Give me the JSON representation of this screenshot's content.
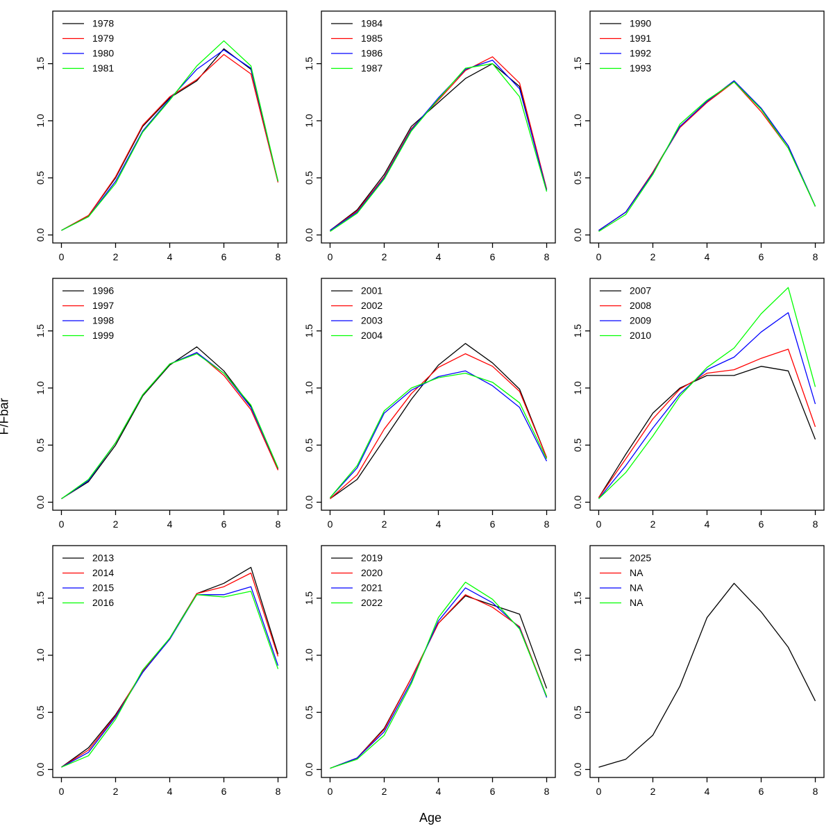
{
  "figure": {
    "xlabel": "Age",
    "ylabel": "F/Fbar",
    "background": "#ffffff",
    "axis_color": "#000000",
    "x_ticks": [
      "0",
      "2",
      "4",
      "6",
      "8"
    ],
    "y_ticks": [
      "0.0",
      "0.5",
      "1.0",
      "1.5"
    ],
    "xlim": [
      -0.32,
      8.32
    ],
    "ylim": [
      -0.07,
      1.96
    ],
    "legend_position": "top-left",
    "grid": "off",
    "layout": "3x3 small multiples"
  },
  "chart_data": [
    {
      "type": "line",
      "x": [
        0,
        1,
        2,
        3,
        4,
        5,
        6,
        7,
        8
      ],
      "xlabel": "Age",
      "ylabel": "F/Fbar",
      "legend": [
        "1978",
        "1979",
        "1980",
        "1981"
      ],
      "series": [
        {
          "name": "1978",
          "color": "#000000",
          "values": [
            0.04,
            0.17,
            0.5,
            0.95,
            1.2,
            1.35,
            1.63,
            1.45,
            0.47
          ]
        },
        {
          "name": "1979",
          "color": "#ff0000",
          "values": [
            0.04,
            0.17,
            0.51,
            0.96,
            1.21,
            1.36,
            1.58,
            1.41,
            0.46
          ]
        },
        {
          "name": "1980",
          "color": "#0000ff",
          "values": [
            0.04,
            0.16,
            0.47,
            0.91,
            1.19,
            1.45,
            1.62,
            1.46,
            0.47
          ]
        },
        {
          "name": "1981",
          "color": "#00ff00",
          "values": [
            0.04,
            0.16,
            0.45,
            0.9,
            1.18,
            1.48,
            1.7,
            1.48,
            0.47
          ]
        }
      ]
    },
    {
      "type": "line",
      "x": [
        0,
        1,
        2,
        3,
        4,
        5,
        6,
        7,
        8
      ],
      "xlabel": "Age",
      "ylabel": "F/Fbar",
      "legend": [
        "1984",
        "1985",
        "1986",
        "1987"
      ],
      "series": [
        {
          "name": "1984",
          "color": "#000000",
          "values": [
            0.04,
            0.22,
            0.53,
            0.95,
            1.16,
            1.37,
            1.5,
            1.3,
            0.4
          ]
        },
        {
          "name": "1985",
          "color": "#ff0000",
          "values": [
            0.04,
            0.21,
            0.51,
            0.93,
            1.18,
            1.44,
            1.56,
            1.33,
            0.4
          ]
        },
        {
          "name": "1986",
          "color": "#0000ff",
          "values": [
            0.04,
            0.2,
            0.5,
            0.92,
            1.2,
            1.45,
            1.53,
            1.28,
            0.39
          ]
        },
        {
          "name": "1987",
          "color": "#00ff00",
          "values": [
            0.03,
            0.19,
            0.49,
            0.91,
            1.19,
            1.46,
            1.5,
            1.21,
            0.38
          ]
        }
      ]
    },
    {
      "type": "line",
      "x": [
        0,
        1,
        2,
        3,
        4,
        5,
        6,
        7,
        8
      ],
      "xlabel": "Age",
      "ylabel": "F/Fbar",
      "legend": [
        "1990",
        "1991",
        "1992",
        "1993"
      ],
      "series": [
        {
          "name": "1990",
          "color": "#000000",
          "values": [
            0.04,
            0.2,
            0.55,
            0.95,
            1.17,
            1.35,
            1.11,
            0.78,
            0.25
          ]
        },
        {
          "name": "1991",
          "color": "#ff0000",
          "values": [
            0.04,
            0.2,
            0.55,
            0.94,
            1.16,
            1.34,
            1.08,
            0.76,
            0.25
          ]
        },
        {
          "name": "1992",
          "color": "#0000ff",
          "values": [
            0.04,
            0.2,
            0.54,
            0.95,
            1.17,
            1.35,
            1.11,
            0.78,
            0.25
          ]
        },
        {
          "name": "1993",
          "color": "#00ff00",
          "values": [
            0.03,
            0.18,
            0.53,
            0.97,
            1.18,
            1.34,
            1.1,
            0.76,
            0.25
          ]
        }
      ]
    },
    {
      "type": "line",
      "x": [
        0,
        1,
        2,
        3,
        4,
        5,
        6,
        7,
        8
      ],
      "xlabel": "Age",
      "ylabel": "F/Fbar",
      "legend": [
        "1996",
        "1997",
        "1998",
        "1999"
      ],
      "series": [
        {
          "name": "1996",
          "color": "#000000",
          "values": [
            0.03,
            0.18,
            0.5,
            0.93,
            1.2,
            1.36,
            1.15,
            0.84,
            0.29
          ]
        },
        {
          "name": "1997",
          "color": "#ff0000",
          "values": [
            0.03,
            0.19,
            0.52,
            0.94,
            1.21,
            1.31,
            1.11,
            0.81,
            0.28
          ]
        },
        {
          "name": "1998",
          "color": "#0000ff",
          "values": [
            0.03,
            0.19,
            0.52,
            0.94,
            1.21,
            1.31,
            1.13,
            0.83,
            0.3
          ]
        },
        {
          "name": "1999",
          "color": "#00ff00",
          "values": [
            0.03,
            0.2,
            0.52,
            0.94,
            1.21,
            1.3,
            1.13,
            0.85,
            0.3
          ]
        }
      ]
    },
    {
      "type": "line",
      "x": [
        0,
        1,
        2,
        3,
        4,
        5,
        6,
        7,
        8
      ],
      "xlabel": "Age",
      "ylabel": "F/Fbar",
      "legend": [
        "2001",
        "2002",
        "2003",
        "2004"
      ],
      "series": [
        {
          "name": "2001",
          "color": "#000000",
          "values": [
            0.03,
            0.2,
            0.55,
            0.9,
            1.2,
            1.39,
            1.22,
            0.99,
            0.39
          ]
        },
        {
          "name": "2002",
          "color": "#ff0000",
          "values": [
            0.03,
            0.24,
            0.64,
            0.95,
            1.18,
            1.3,
            1.19,
            0.97,
            0.39
          ]
        },
        {
          "name": "2003",
          "color": "#0000ff",
          "values": [
            0.04,
            0.3,
            0.78,
            0.98,
            1.1,
            1.15,
            1.02,
            0.83,
            0.36
          ]
        },
        {
          "name": "2004",
          "color": "#00ff00",
          "values": [
            0.04,
            0.32,
            0.8,
            1.0,
            1.09,
            1.13,
            1.05,
            0.87,
            0.38
          ]
        }
      ]
    },
    {
      "type": "line",
      "x": [
        0,
        1,
        2,
        3,
        4,
        5,
        6,
        7,
        8
      ],
      "xlabel": "Age",
      "ylabel": "F/Fbar",
      "legend": [
        "2007",
        "2008",
        "2009",
        "2010"
      ],
      "series": [
        {
          "name": "2007",
          "color": "#000000",
          "values": [
            0.04,
            0.42,
            0.78,
            1.0,
            1.11,
            1.11,
            1.19,
            1.15,
            0.55
          ]
        },
        {
          "name": "2008",
          "color": "#ff0000",
          "values": [
            0.04,
            0.38,
            0.73,
            0.99,
            1.13,
            1.16,
            1.26,
            1.34,
            0.66
          ]
        },
        {
          "name": "2009",
          "color": "#0000ff",
          "values": [
            0.03,
            0.32,
            0.65,
            0.95,
            1.16,
            1.27,
            1.49,
            1.66,
            0.86
          ]
        },
        {
          "name": "2010",
          "color": "#00ff00",
          "values": [
            0.03,
            0.26,
            0.58,
            0.93,
            1.18,
            1.35,
            1.65,
            1.88,
            1.01
          ]
        }
      ]
    },
    {
      "type": "line",
      "x": [
        0,
        1,
        2,
        3,
        4,
        5,
        6,
        7,
        8
      ],
      "xlabel": "Age",
      "ylabel": "F/Fbar",
      "legend": [
        "2013",
        "2014",
        "2015",
        "2016"
      ],
      "series": [
        {
          "name": "2013",
          "color": "#000000",
          "values": [
            0.02,
            0.19,
            0.48,
            0.85,
            1.15,
            1.54,
            1.63,
            1.77,
            1.01
          ]
        },
        {
          "name": "2014",
          "color": "#ff0000",
          "values": [
            0.02,
            0.17,
            0.47,
            0.86,
            1.14,
            1.54,
            1.6,
            1.72,
            0.99
          ]
        },
        {
          "name": "2015",
          "color": "#0000ff",
          "values": [
            0.02,
            0.15,
            0.46,
            0.85,
            1.14,
            1.53,
            1.53,
            1.6,
            0.91
          ]
        },
        {
          "name": "2016",
          "color": "#00ff00",
          "values": [
            0.02,
            0.12,
            0.44,
            0.87,
            1.15,
            1.53,
            1.51,
            1.56,
            0.88
          ]
        }
      ]
    },
    {
      "type": "line",
      "x": [
        0,
        1,
        2,
        3,
        4,
        5,
        6,
        7,
        8
      ],
      "xlabel": "Age",
      "ylabel": "F/Fbar",
      "legend": [
        "2019",
        "2020",
        "2021",
        "2022"
      ],
      "series": [
        {
          "name": "2019",
          "color": "#000000",
          "values": [
            0.01,
            0.1,
            0.36,
            0.8,
            1.28,
            1.52,
            1.44,
            1.36,
            0.71
          ]
        },
        {
          "name": "2020",
          "color": "#ff0000",
          "values": [
            0.01,
            0.1,
            0.35,
            0.8,
            1.28,
            1.53,
            1.42,
            1.25,
            0.64
          ]
        },
        {
          "name": "2021",
          "color": "#0000ff",
          "values": [
            0.01,
            0.1,
            0.33,
            0.77,
            1.3,
            1.59,
            1.46,
            1.24,
            0.63
          ]
        },
        {
          "name": "2022",
          "color": "#00ff00",
          "values": [
            0.01,
            0.09,
            0.3,
            0.75,
            1.33,
            1.64,
            1.49,
            1.23,
            0.64
          ]
        }
      ]
    },
    {
      "type": "line",
      "x": [
        0,
        1,
        2,
        3,
        4,
        5,
        6,
        7,
        8
      ],
      "xlabel": "Age",
      "ylabel": "F/Fbar",
      "legend": [
        "2025",
        "NA",
        "NA",
        "NA"
      ],
      "series": [
        {
          "name": "2025",
          "color": "#000000",
          "values": [
            0.02,
            0.09,
            0.3,
            0.73,
            1.33,
            1.63,
            1.38,
            1.07,
            0.6
          ]
        },
        {
          "name": "NA",
          "color": "#ff0000",
          "values": null
        },
        {
          "name": "NA",
          "color": "#0000ff",
          "values": null
        },
        {
          "name": "NA",
          "color": "#00ff00",
          "values": null
        }
      ]
    }
  ]
}
